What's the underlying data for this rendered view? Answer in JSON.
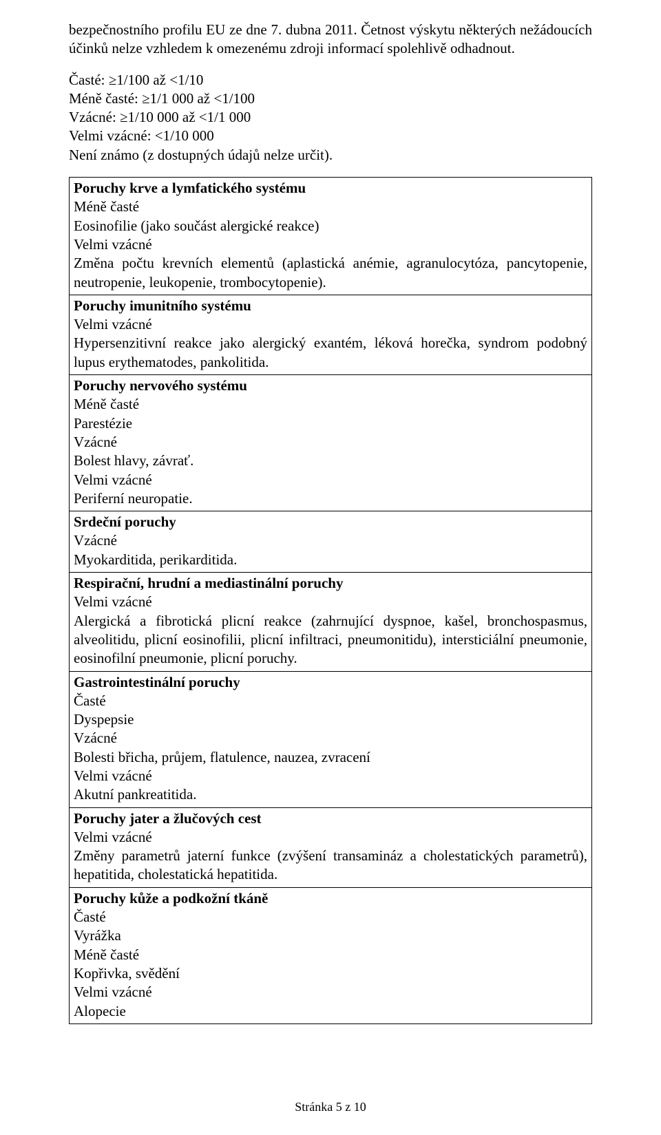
{
  "top_para": "bezpečnostního profilu EU ze dne 7. dubna 2011. Četnost výskytu některých nežádoucích účinků nelze vzhledem k omezenému zdroji informací spolehlivě odhadnout.",
  "freq": {
    "l1": "Časté: ≥1/100 až <1/10",
    "l2": "Méně časté: ≥1/1 000 až <1/100",
    "l3": "Vzácné: ≥1/10 000 až <1/1 000",
    "l4": "Velmi vzácné: <1/10 000",
    "l5": "Není známo (z dostupných údajů nelze určit)."
  },
  "rows": [
    {
      "lines": [
        {
          "bold": true,
          "text": "Poruchy krve a lymfatického systému"
        },
        {
          "bold": false,
          "text": "Méně časté"
        },
        {
          "bold": false,
          "text": "Eosinofilie (jako součást alergické reakce)"
        },
        {
          "bold": false,
          "text": "Velmi vzácné"
        },
        {
          "bold": false,
          "text": "Změna počtu krevních elementů (aplastická anémie, agranulocytóza, pancytopenie, neutropenie, leukopenie, trombocytopenie)."
        }
      ]
    },
    {
      "lines": [
        {
          "bold": true,
          "text": "Poruchy imunitního systému"
        },
        {
          "bold": false,
          "text": "Velmi vzácné"
        },
        {
          "bold": false,
          "text": "Hypersenzitivní reakce jako alergický exantém, léková horečka, syndrom podobný lupus erythematodes, pankolitida."
        }
      ]
    },
    {
      "lines": [
        {
          "bold": true,
          "text": "Poruchy nervového systému"
        },
        {
          "bold": false,
          "text": "Méně časté"
        },
        {
          "bold": false,
          "text": "Parestézie"
        },
        {
          "bold": false,
          "text": "Vzácné"
        },
        {
          "bold": false,
          "text": "Bolest hlavy, závrať."
        },
        {
          "bold": false,
          "text": "Velmi vzácné"
        },
        {
          "bold": false,
          "text": "Periferní neuropatie."
        }
      ]
    },
    {
      "lines": [
        {
          "bold": true,
          "text": "Srdeční poruchy"
        },
        {
          "bold": false,
          "text": "Vzácné"
        },
        {
          "bold": false,
          "text": "Myokarditida, perikarditida."
        }
      ]
    },
    {
      "lines": [
        {
          "bold": true,
          "text": "Respirační, hrudní a mediastinální poruchy"
        },
        {
          "bold": false,
          "text": "Velmi vzácné"
        },
        {
          "bold": false,
          "text": "Alergická a fibrotická plicní reakce (zahrnující dyspnoe, kašel, bronchospasmus, alveolitidu, plicní eosinofilii, plicní infiltraci, pneumonitidu), intersticiální pneumonie, eosinofilní pneumonie, plicní poruchy."
        }
      ]
    },
    {
      "lines": [
        {
          "bold": true,
          "text": "Gastrointestinální poruchy"
        },
        {
          "bold": false,
          "text": "Časté"
        },
        {
          "bold": false,
          "text": "Dyspepsie"
        },
        {
          "bold": false,
          "text": "Vzácné"
        },
        {
          "bold": false,
          "text": "Bolesti břicha, průjem, flatulence, nauzea, zvracení"
        },
        {
          "bold": false,
          "text": "Velmi vzácné"
        },
        {
          "bold": false,
          "text": "Akutní pankreatitida."
        }
      ]
    },
    {
      "lines": [
        {
          "bold": true,
          "text": "Poruchy jater a žlučových cest"
        },
        {
          "bold": false,
          "text": "Velmi vzácné"
        },
        {
          "bold": false,
          "text": "Změny parametrů jaterní funkce (zvýšení transamináz a cholestatických parametrů), hepatitida, cholestatická hepatitida."
        }
      ]
    },
    {
      "lines": [
        {
          "bold": true,
          "text": "Poruchy kůže a podkožní tkáně"
        },
        {
          "bold": false,
          "text": "Časté"
        },
        {
          "bold": false,
          "text": "Vyrážka"
        },
        {
          "bold": false,
          "text": "Méně časté"
        },
        {
          "bold": false,
          "text": "Kopřivka, svědění"
        },
        {
          "bold": false,
          "text": "Velmi vzácné"
        },
        {
          "bold": false,
          "text": "Alopecie"
        }
      ]
    }
  ],
  "footer": "Stránka 5 z 10"
}
